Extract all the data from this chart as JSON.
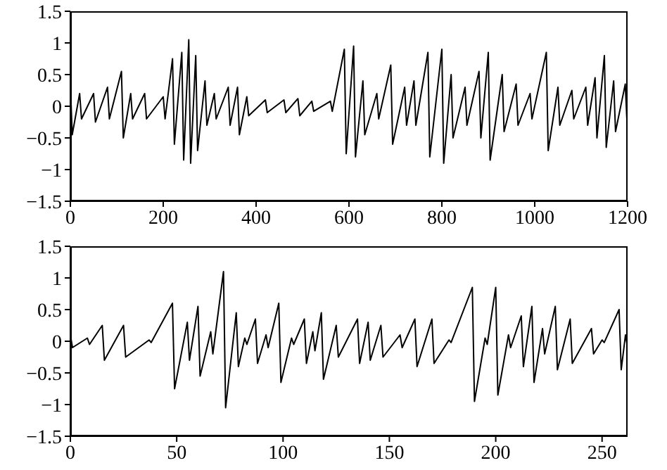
{
  "chart_data": [
    {
      "type": "line",
      "x": [
        0,
        4,
        20,
        24,
        50,
        54,
        80,
        84,
        110,
        114,
        130,
        134,
        160,
        164,
        200,
        204,
        220,
        224,
        240,
        244,
        255,
        259,
        270,
        274,
        290,
        294,
        310,
        314,
        340,
        344,
        360,
        364,
        380,
        384,
        420,
        424,
        460,
        464,
        490,
        494,
        520,
        524,
        560,
        564,
        590,
        594,
        610,
        614,
        630,
        634,
        660,
        664,
        690,
        694,
        720,
        724,
        740,
        744,
        770,
        774,
        800,
        804,
        820,
        824,
        850,
        854,
        880,
        884,
        900,
        904,
        930,
        934,
        960,
        964,
        990,
        994,
        1025,
        1029,
        1050,
        1054,
        1080,
        1084,
        1110,
        1114,
        1130,
        1134,
        1150,
        1154,
        1170,
        1174,
        1195,
        1199
      ],
      "series": [
        {
          "color": "#000000",
          "values": [
            0.35,
            -0.45,
            0.2,
            -0.2,
            0.2,
            -0.25,
            0.3,
            -0.2,
            0.55,
            -0.5,
            0.2,
            -0.2,
            0.2,
            -0.2,
            0.15,
            -0.2,
            0.75,
            -0.6,
            0.85,
            -0.85,
            1.05,
            -0.9,
            0.8,
            -0.7,
            0.4,
            -0.3,
            0.2,
            -0.2,
            0.3,
            -0.3,
            0.3,
            -0.45,
            0.15,
            -0.15,
            0.1,
            -0.1,
            0.1,
            -0.1,
            0.12,
            -0.15,
            0.08,
            -0.08,
            0.08,
            -0.08,
            0.9,
            -0.75,
            0.95,
            -0.8,
            0.4,
            -0.45,
            0.2,
            -0.2,
            0.65,
            -0.6,
            0.3,
            -0.3,
            0.4,
            -0.3,
            0.85,
            -0.8,
            0.9,
            -0.9,
            0.5,
            -0.5,
            0.3,
            -0.3,
            0.55,
            -0.5,
            0.85,
            -0.85,
            0.5,
            -0.4,
            0.35,
            -0.3,
            0.2,
            -0.2,
            0.85,
            -0.7,
            0.3,
            -0.3,
            0.25,
            -0.2,
            0.3,
            -0.3,
            0.45,
            -0.5,
            0.8,
            -0.65,
            0.4,
            -0.4,
            0.35,
            -0.3
          ]
        }
      ],
      "xlim": [
        0,
        1200
      ],
      "xticks": [
        0,
        200,
        400,
        600,
        800,
        1000,
        1200
      ],
      "ylim": [
        -1.5,
        1.5
      ],
      "yticks": [
        {
          "value": -1.5,
          "label": "−1.5"
        },
        {
          "value": -1,
          "label": "−1"
        },
        {
          "value": -0.5,
          "label": "−0.5"
        },
        0,
        0.5,
        1,
        1.5
      ],
      "marker": "none",
      "grid": false,
      "legend": false
    },
    {
      "type": "line",
      "x": [
        0,
        1,
        8,
        9,
        15,
        16,
        25,
        26,
        37,
        38,
        48,
        49,
        55,
        56,
        60,
        61,
        66,
        67,
        72,
        73,
        78,
        79,
        82,
        83,
        87,
        88,
        92,
        93,
        98,
        99,
        104,
        105,
        110,
        111,
        114,
        115,
        118,
        119,
        125,
        126,
        135,
        136,
        140,
        141,
        146,
        147,
        155,
        156,
        162,
        163,
        170,
        171,
        178,
        179,
        189,
        190,
        195,
        196,
        200,
        201,
        206,
        207,
        212,
        213,
        217,
        218,
        222,
        223,
        228,
        229,
        235,
        236,
        245,
        246,
        250,
        251,
        258,
        259,
        261,
        262
      ],
      "series": [
        {
          "color": "#000000",
          "values": [
            0.1,
            -0.1,
            0.05,
            -0.05,
            0.25,
            -0.3,
            0.25,
            -0.25,
            0.02,
            -0.02,
            0.6,
            -0.75,
            0.3,
            -0.3,
            0.55,
            -0.55,
            0.15,
            -0.2,
            1.1,
            -1.05,
            0.45,
            -0.4,
            0.05,
            -0.05,
            0.35,
            -0.35,
            0.1,
            -0.1,
            0.6,
            -0.65,
            0.05,
            -0.05,
            0.35,
            -0.35,
            0.15,
            -0.15,
            0.45,
            -0.6,
            0.25,
            -0.25,
            0.35,
            -0.35,
            0.3,
            -0.3,
            0.25,
            -0.25,
            0.1,
            -0.1,
            0.35,
            -0.4,
            0.35,
            -0.35,
            0.02,
            -0.02,
            0.85,
            -0.95,
            0.05,
            -0.05,
            0.85,
            -0.85,
            0.1,
            -0.1,
            0.4,
            -0.4,
            0.55,
            -0.65,
            0.2,
            -0.2,
            0.55,
            -0.45,
            0.35,
            -0.35,
            0.2,
            -0.2,
            0.02,
            -0.02,
            0.5,
            -0.45,
            0.1,
            -0.1
          ]
        }
      ],
      "xlim": [
        0,
        262
      ],
      "xticks": [
        0,
        50,
        100,
        150,
        200,
        250
      ],
      "ylim": [
        -1.5,
        1.5
      ],
      "yticks": [
        {
          "value": -1.5,
          "label": "−1.5"
        },
        {
          "value": -1,
          "label": "−1"
        },
        {
          "value": -0.5,
          "label": "−0.5"
        },
        0,
        0.5,
        1,
        1.5
      ],
      "marker": "none",
      "grid": false,
      "legend": false
    }
  ]
}
